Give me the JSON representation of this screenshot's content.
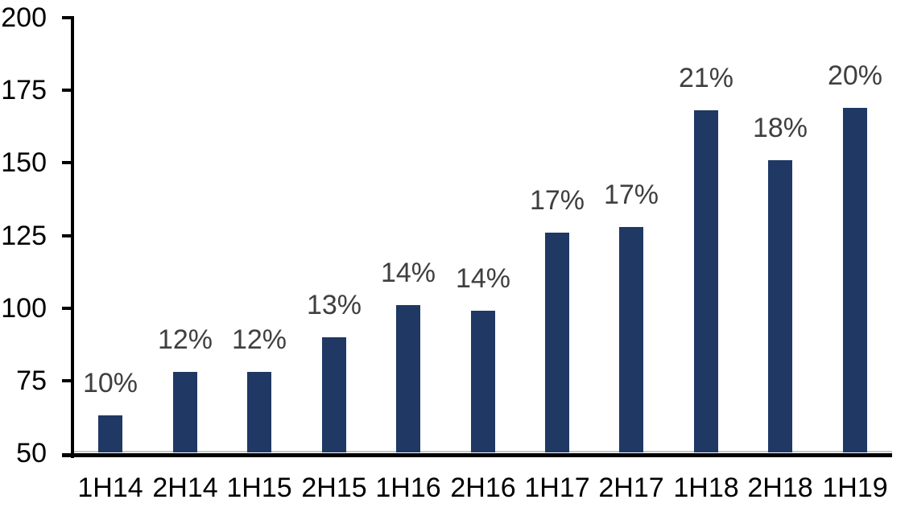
{
  "chart_data": {
    "type": "bar",
    "title": "",
    "xlabel": "",
    "ylabel": "",
    "categories": [
      "1H14",
      "2H14",
      "1H15",
      "2H15",
      "1H16",
      "2H16",
      "1H17",
      "2H17",
      "1H18",
      "2H18",
      "1H19"
    ],
    "values": [
      63,
      78,
      78,
      90,
      101,
      99,
      126,
      128,
      168,
      151,
      169
    ],
    "bar_labels": [
      "10%",
      "12%",
      "12%",
      "13%",
      "14%",
      "14%",
      "17%",
      "17%",
      "21%",
      "18%",
      "20%"
    ],
    "ylim": [
      50,
      200
    ],
    "yticks": [
      50,
      75,
      100,
      125,
      150,
      175,
      200
    ],
    "ytick_labels": [
      "50",
      "75",
      "100",
      "125",
      "150",
      "175",
      "200"
    ],
    "grid": false,
    "legend": null,
    "colors": {
      "bar_fill": "#1F3864",
      "value_label": "#3F3F3F",
      "axis_text": "#000000",
      "axis_line": "#000000",
      "plot_bottom_border": "#C3C7CB",
      "background": "#FFFFFF"
    }
  }
}
